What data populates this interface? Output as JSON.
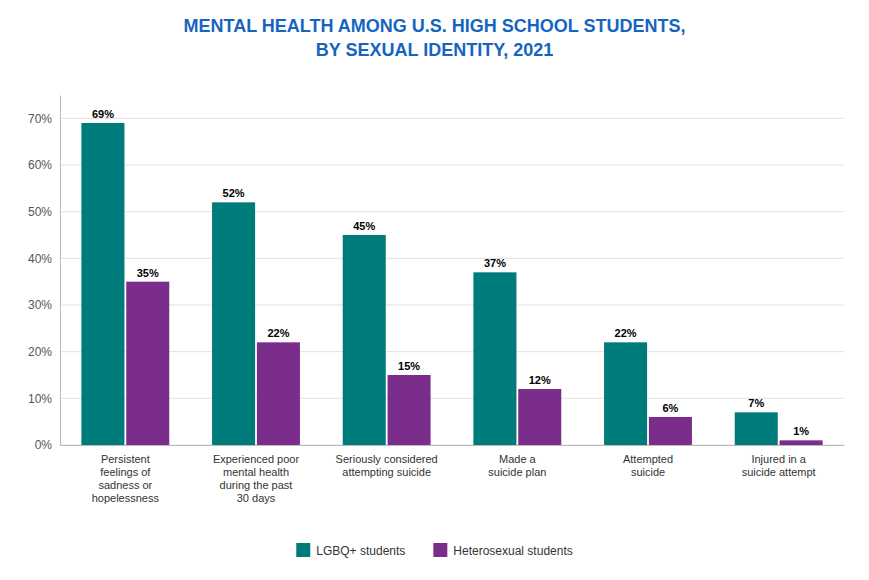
{
  "chart_data": {
    "type": "bar",
    "title": "MENTAL HEALTH AMONG U.S. HIGH SCHOOL STUDENTS,\nBY SEXUAL IDENTITY, 2021",
    "categories": [
      "Persistent\nfeelings of\nsadness or\nhopelessness",
      "Experienced poor\nmental health\nduring the past\n30 days",
      "Seriously considered\nattempting suicide",
      "Made a\nsuicide plan",
      "Attempted\nsuicide",
      "Injured in a\nsuicide attempt"
    ],
    "series": [
      {
        "name": "LGBQ+ students",
        "color": "#007b7b",
        "values": [
          69,
          52,
          45,
          37,
          22,
          7
        ],
        "value_labels": [
          "69%",
          "52%",
          "45%",
          "37%",
          "22%",
          "7%"
        ]
      },
      {
        "name": "Heterosexual students",
        "color": "#7b2d8b",
        "values": [
          35,
          22,
          15,
          12,
          6,
          1
        ],
        "value_labels": [
          "35%",
          "22%",
          "15%",
          "12%",
          "6%",
          "1%"
        ]
      }
    ],
    "ylim": [
      0,
      75
    ],
    "yticks": [
      {
        "value": 0,
        "label": "0%"
      },
      {
        "value": 10,
        "label": "10%"
      },
      {
        "value": 20,
        "label": "20%"
      },
      {
        "value": 30,
        "label": "30%"
      },
      {
        "value": 40,
        "label": "40%"
      },
      {
        "value": 50,
        "label": "50%"
      },
      {
        "value": 60,
        "label": "60%"
      },
      {
        "value": 70,
        "label": "70%"
      }
    ],
    "grid": true,
    "data_labels": true,
    "legend": "bottom"
  }
}
